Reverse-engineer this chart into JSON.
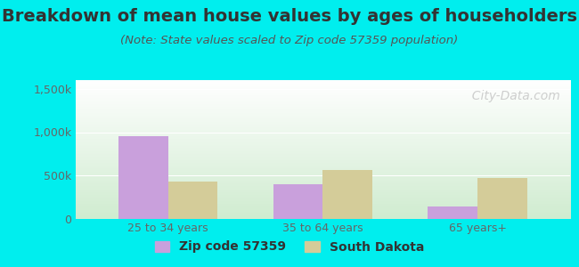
{
  "title": "Breakdown of mean house values by ages of householders",
  "subtitle": "(Note: State values scaled to Zip code 57359 population)",
  "categories": [
    "25 to 34 years",
    "35 to 64 years",
    "65 years+"
  ],
  "zip_values": [
    950000,
    400000,
    140000
  ],
  "state_values": [
    430000,
    565000,
    475000
  ],
  "zip_color": "#c9a0dc",
  "state_color": "#d4cc99",
  "background_color": "#00eeee",
  "plot_bg_top": "#ffffff",
  "plot_bg_bottom": "#d0ecd0",
  "ylim": [
    0,
    1600000
  ],
  "yticks": [
    0,
    500000,
    1000000,
    1500000
  ],
  "ytick_labels": [
    "0",
    "500k",
    "1,000k",
    "1,500k"
  ],
  "watermark": "  City-Data.com",
  "legend_zip_label": "Zip code 57359",
  "legend_state_label": "South Dakota",
  "bar_width": 0.32,
  "title_fontsize": 14,
  "subtitle_fontsize": 9.5,
  "tick_fontsize": 9,
  "legend_fontsize": 10,
  "title_color": "#333333",
  "subtitle_color": "#555555",
  "tick_color": "#666666"
}
